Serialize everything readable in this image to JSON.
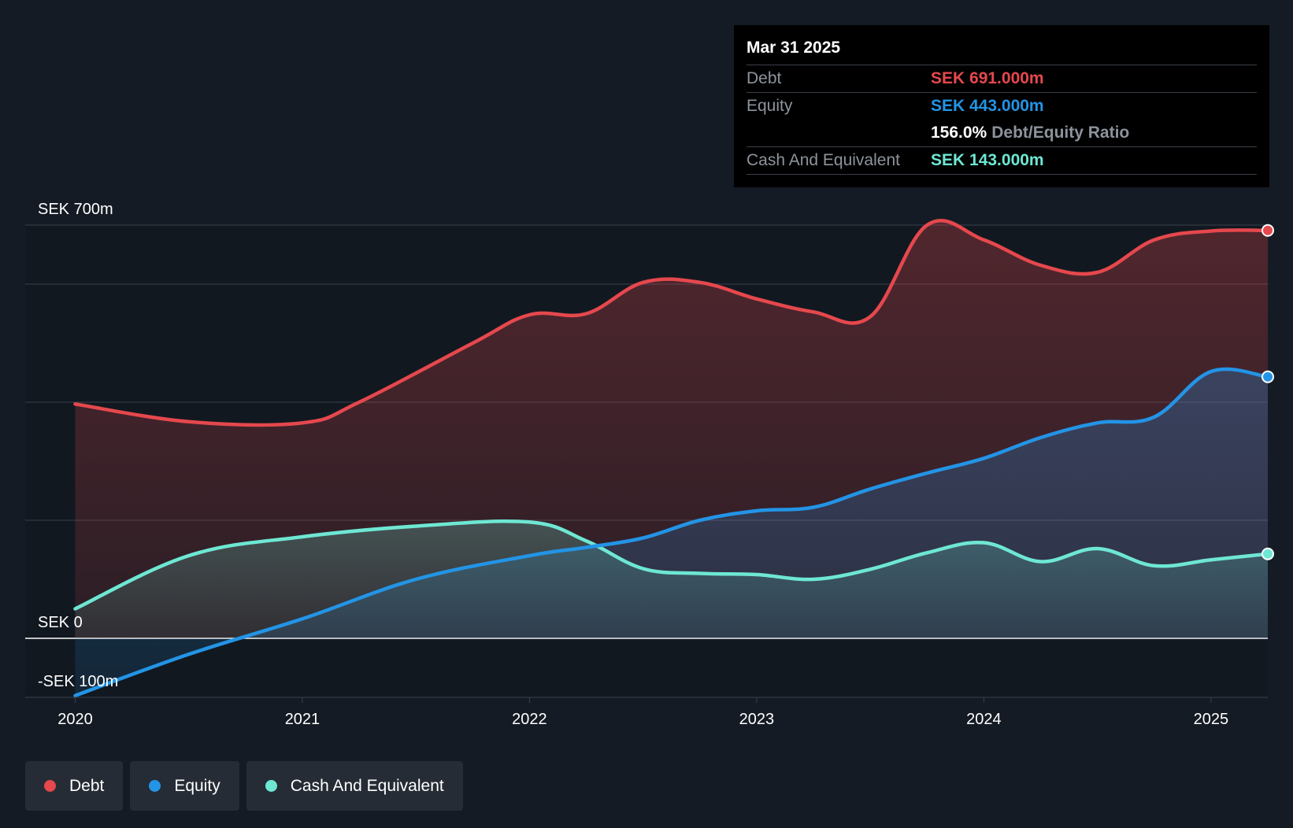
{
  "colors": {
    "background": "#151b24",
    "debt": "#e5484d",
    "equity": "#2394e6",
    "cash": "#6ee7d3",
    "grid": "#3a414b",
    "text": "#ffffff",
    "muted": "#8d939c"
  },
  "tooltip": {
    "date": "Mar 31 2025",
    "debt_label": "Debt",
    "debt_value": "SEK 691.000m",
    "equity_label": "Equity",
    "equity_value": "SEK 443.000m",
    "ratio_value": "156.0%",
    "ratio_label": "Debt/Equity Ratio",
    "cash_label": "Cash And Equivalent",
    "cash_value": "SEK 143.000m"
  },
  "legend": {
    "items": [
      {
        "label": "Debt",
        "color": "#e5484d"
      },
      {
        "label": "Equity",
        "color": "#2394e6"
      },
      {
        "label": "Cash And Equivalent",
        "color": "#6ee7d3"
      }
    ]
  },
  "chart_data": {
    "type": "area",
    "title": "",
    "xlabel": "",
    "ylabel": "",
    "ylim": [
      -100,
      700
    ],
    "y_tick_labels": [
      {
        "value": 700,
        "label": "SEK 700m"
      },
      {
        "value": 0,
        "label": "SEK 0"
      },
      {
        "value": -100,
        "label": "-SEK 100m"
      }
    ],
    "y_gridlines": [
      700,
      600,
      400,
      200,
      0,
      -100
    ],
    "x_range": [
      2019.78,
      2025.25
    ],
    "x_tick_labels": [
      {
        "value": 2020,
        "label": "2020"
      },
      {
        "value": 2021,
        "label": "2021"
      },
      {
        "value": 2022,
        "label": "2022"
      },
      {
        "value": 2023,
        "label": "2023"
      },
      {
        "value": 2024,
        "label": "2024"
      },
      {
        "value": 2025,
        "label": "2025"
      }
    ],
    "highlight_x": 2025.25,
    "series": [
      {
        "name": "Debt",
        "color": "#e5484d",
        "points": [
          [
            2020.0,
            397
          ],
          [
            2020.5,
            367
          ],
          [
            2021.0,
            365
          ],
          [
            2021.25,
            400
          ],
          [
            2021.75,
            500
          ],
          [
            2022.0,
            548
          ],
          [
            2022.25,
            550
          ],
          [
            2022.5,
            603
          ],
          [
            2022.75,
            603
          ],
          [
            2023.0,
            575
          ],
          [
            2023.25,
            553
          ],
          [
            2023.5,
            545
          ],
          [
            2023.75,
            700
          ],
          [
            2024.0,
            675
          ],
          [
            2024.25,
            632
          ],
          [
            2024.5,
            620
          ],
          [
            2024.75,
            675
          ],
          [
            2025.0,
            690
          ],
          [
            2025.25,
            691
          ]
        ]
      },
      {
        "name": "Equity",
        "color": "#2394e6",
        "points": [
          [
            2020.0,
            -97
          ],
          [
            2020.5,
            -27
          ],
          [
            2021.0,
            33
          ],
          [
            2021.5,
            100
          ],
          [
            2022.0,
            140
          ],
          [
            2022.25,
            154
          ],
          [
            2022.5,
            170
          ],
          [
            2022.75,
            200
          ],
          [
            2023.0,
            216
          ],
          [
            2023.25,
            222
          ],
          [
            2023.5,
            253
          ],
          [
            2023.75,
            280
          ],
          [
            2024.0,
            305
          ],
          [
            2024.25,
            340
          ],
          [
            2024.5,
            365
          ],
          [
            2024.75,
            375
          ],
          [
            2025.0,
            452
          ],
          [
            2025.25,
            443
          ]
        ]
      },
      {
        "name": "Cash And Equivalent",
        "color": "#6ee7d3",
        "points": [
          [
            2020.0,
            50
          ],
          [
            2020.5,
            140
          ],
          [
            2021.0,
            172
          ],
          [
            2021.5,
            190
          ],
          [
            2022.0,
            197
          ],
          [
            2022.25,
            165
          ],
          [
            2022.5,
            118
          ],
          [
            2022.75,
            110
          ],
          [
            2023.0,
            108
          ],
          [
            2023.25,
            100
          ],
          [
            2023.5,
            117
          ],
          [
            2023.75,
            145
          ],
          [
            2024.0,
            162
          ],
          [
            2024.25,
            130
          ],
          [
            2024.5,
            152
          ],
          [
            2024.75,
            123
          ],
          [
            2025.0,
            133
          ],
          [
            2025.25,
            143
          ]
        ]
      }
    ]
  }
}
